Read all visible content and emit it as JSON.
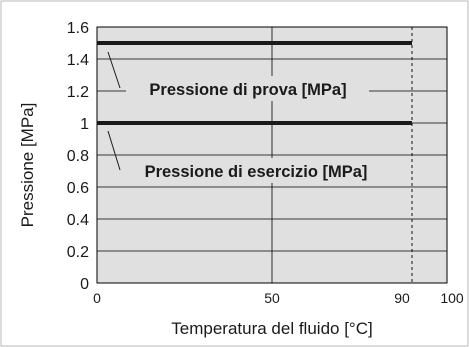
{
  "chart_data": {
    "type": "line",
    "xlabel": "Temperatura del fluido [°C]",
    "ylabel": "Pressione [MPa]",
    "xlim": [
      0,
      100
    ],
    "ylim": [
      0,
      1.6
    ],
    "x_ticks": [
      "0",
      "50",
      "90",
      "100"
    ],
    "y_ticks": [
      "0",
      "0.2",
      "0.4",
      "0.6",
      "0.8",
      "1",
      "1.2",
      "1.4",
      "1.6"
    ],
    "grid": true,
    "reference_line_x": 90,
    "series": [
      {
        "name": "Pressione di prova [MPa]",
        "x": [
          0,
          90
        ],
        "y": [
          1.5,
          1.5
        ]
      },
      {
        "name": "Pressione di esercizio [MPa]",
        "x": [
          0,
          90
        ],
        "y": [
          1.0,
          1.0
        ]
      }
    ],
    "colors": {
      "plot_bg": "#e0e0e0",
      "line": "#1a1a1a",
      "grid": "#000000"
    }
  }
}
